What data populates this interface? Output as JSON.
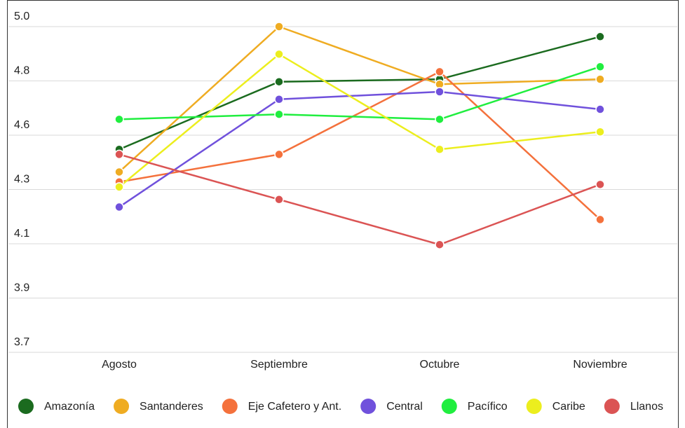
{
  "chart_data": {
    "type": "line",
    "categories": [
      "Agosto",
      "Septiembre",
      "Octubre",
      "Noviembre"
    ],
    "series": [
      {
        "name": "Amazonía",
        "color": "#1b6b1f",
        "values": [
          4.51,
          4.78,
          4.79,
          4.96
        ]
      },
      {
        "name": "Santanderes",
        "color": "#efac22",
        "values": [
          4.42,
          5.0,
          4.77,
          4.79
        ]
      },
      {
        "name": "Eje Cafetero y Ant.",
        "color": "#f4713c",
        "values": [
          4.38,
          4.49,
          4.82,
          4.23
        ]
      },
      {
        "name": "Central",
        "color": "#7051dc",
        "values": [
          4.28,
          4.71,
          4.74,
          4.67
        ]
      },
      {
        "name": "Pacífico",
        "color": "#20ee3f",
        "values": [
          4.63,
          4.65,
          4.63,
          4.84
        ]
      },
      {
        "name": "Caribe",
        "color": "#ecee1e",
        "values": [
          4.36,
          4.89,
          4.51,
          4.58
        ]
      },
      {
        "name": "Llanos",
        "color": "#db5454",
        "values": [
          4.49,
          4.31,
          4.13,
          4.37
        ]
      }
    ],
    "ylim": [
      3.7,
      5.0
    ],
    "yticks": [
      3.7,
      {
        "value": 3.9167,
        "label": "3.9"
      },
      {
        "value": 4.1333,
        "label": "4.1"
      },
      {
        "value": 4.35,
        "label": "4.3"
      },
      {
        "value": 4.5667,
        "label": "4.6"
      },
      {
        "value": 4.7833,
        "label": "4.8"
      },
      {
        "value": 5,
        "label": "5.0"
      }
    ],
    "grid": true,
    "legend": "bottom"
  }
}
